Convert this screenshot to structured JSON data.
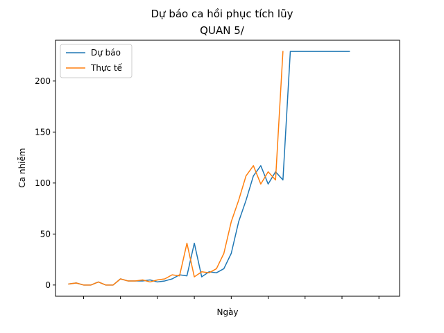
{
  "chart_data": {
    "type": "line",
    "title": "Dự báo ca hồi phục tích lũy",
    "subtitle": "QUAN 5/",
    "xlabel": "Ngày",
    "ylabel": "Ca nhiễm",
    "ylim": [
      -11,
      240
    ],
    "yticks": [
      0,
      50,
      100,
      150,
      200
    ],
    "xlim": [
      -1.8,
      44.8
    ],
    "xticks": [
      2,
      7,
      12,
      17,
      22,
      27,
      32,
      37,
      42
    ],
    "legend": "top-left",
    "grid": false,
    "series": [
      {
        "name": "Dự báo",
        "color": "#1f77b4",
        "x": [
          0,
          1,
          2,
          3,
          4,
          5,
          6,
          7,
          8,
          9,
          10,
          11,
          12,
          13,
          14,
          15,
          16,
          17,
          18,
          19,
          20,
          21,
          22,
          23,
          24,
          25,
          26,
          27,
          28,
          29,
          30,
          31,
          32,
          33,
          34,
          35,
          36,
          37,
          38
        ],
        "values": [
          1,
          2,
          0,
          0,
          3,
          0,
          0,
          6,
          4,
          4,
          4,
          5,
          3,
          4,
          6,
          10,
          9,
          41,
          8,
          13,
          12,
          16,
          31,
          62,
          83,
          107,
          117,
          99,
          111,
          103,
          229,
          229,
          229,
          229,
          229,
          229,
          229,
          229,
          229
        ]
      },
      {
        "name": "Thực tế",
        "color": "#ff7f0e",
        "x": [
          0,
          1,
          2,
          3,
          4,
          5,
          6,
          7,
          8,
          9,
          10,
          11,
          12,
          13,
          14,
          15,
          16,
          17,
          18,
          19,
          20,
          21,
          22,
          23,
          24,
          25,
          26,
          27,
          28,
          29
        ],
        "values": [
          1,
          2,
          0,
          0,
          3,
          0,
          0,
          6,
          4,
          4,
          5,
          3,
          5,
          6,
          10,
          9,
          41,
          8,
          13,
          12,
          16,
          31,
          62,
          83,
          107,
          117,
          99,
          111,
          103,
          229
        ]
      }
    ]
  }
}
